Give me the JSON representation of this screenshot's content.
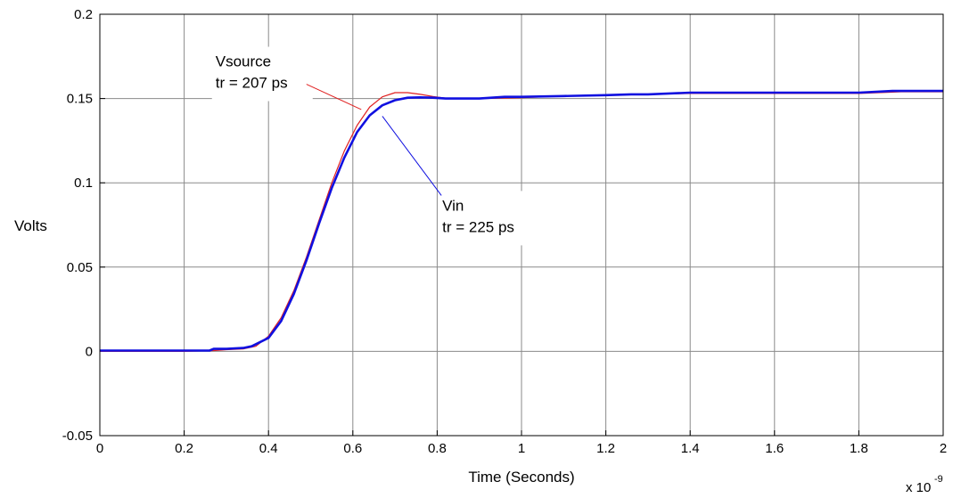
{
  "chart_data": {
    "type": "line",
    "title": "",
    "xlabel": "Time (Seconds)",
    "ylabel": "Volts",
    "x_multiplier_label": "x 10",
    "x_multiplier_exponent": "-9",
    "xlim": [
      0,
      2
    ],
    "ylim": [
      -0.05,
      0.2
    ],
    "grid": true,
    "x_ticks": [
      0,
      0.2,
      0.4,
      0.6,
      0.8,
      1,
      1.2,
      1.4,
      1.6,
      1.8,
      2
    ],
    "x_tick_labels": [
      "0",
      "0.2",
      "0.4",
      "0.6",
      "0.8",
      "1",
      "1.2",
      "1.4",
      "1.6",
      "1.8",
      "2"
    ],
    "y_ticks": [
      -0.05,
      0,
      0.05,
      0.1,
      0.15,
      0.2
    ],
    "y_tick_labels": [
      "-0.05",
      "0",
      "0.05",
      "0.1",
      "0.15",
      "0.2"
    ],
    "series": [
      {
        "color": "#e02020",
        "x": [
          0,
          0.1,
          0.2,
          0.27,
          0.3,
          0.34,
          0.37,
          0.4,
          0.43,
          0.46,
          0.49,
          0.52,
          0.55,
          0.58,
          0.61,
          0.64,
          0.67,
          0.7,
          0.73,
          0.76,
          0.79,
          0.82,
          0.86,
          0.9,
          1.0,
          1.1,
          1.2,
          1.3,
          1.4,
          1.6,
          1.8,
          1.9,
          2.0
        ],
        "y": [
          0,
          0,
          0,
          0.0005,
          0.001,
          0.0015,
          0.003,
          0.009,
          0.02,
          0.036,
          0.056,
          0.078,
          0.1,
          0.119,
          0.134,
          0.145,
          0.151,
          0.1535,
          0.1535,
          0.1525,
          0.1512,
          0.1502,
          0.1499,
          0.15,
          0.1505,
          0.1515,
          0.152,
          0.1525,
          0.153,
          0.153,
          0.153,
          0.154,
          0.154
        ]
      },
      {
        "color": "#1010e0",
        "x": [
          0,
          0.1,
          0.2,
          0.26,
          0.27,
          0.3,
          0.34,
          0.36,
          0.4,
          0.43,
          0.46,
          0.49,
          0.52,
          0.55,
          0.58,
          0.61,
          0.64,
          0.67,
          0.7,
          0.73,
          0.76,
          0.79,
          0.82,
          0.86,
          0.9,
          0.96,
          1.0,
          1.1,
          1.2,
          1.26,
          1.3,
          1.4,
          1.6,
          1.8,
          1.88,
          1.9,
          2.0
        ],
        "y": [
          0.0005,
          0.0005,
          0.0005,
          0.0005,
          0.0015,
          0.0015,
          0.002,
          0.003,
          0.008,
          0.018,
          0.034,
          0.054,
          0.076,
          0.097,
          0.115,
          0.13,
          0.14,
          0.146,
          0.149,
          0.1505,
          0.1507,
          0.1505,
          0.15,
          0.15,
          0.15,
          0.151,
          0.151,
          0.1515,
          0.152,
          0.1525,
          0.1525,
          0.1535,
          0.1535,
          0.1535,
          0.1545,
          0.1545,
          0.1545
        ]
      }
    ],
    "annotations": [
      {
        "lines": [
          "Vsource",
          "tr = 207 ps"
        ],
        "color": "#e02020",
        "pointer_from": [
          0.49,
          0.1585
        ],
        "pointer_to": [
          0.62,
          0.1435
        ]
      },
      {
        "lines": [
          "Vin",
          "tr = 225 ps"
        ],
        "color": "#1010e0",
        "pointer_from": [
          0.81,
          0.0925
        ],
        "pointer_to": [
          0.67,
          0.1395
        ]
      }
    ]
  }
}
